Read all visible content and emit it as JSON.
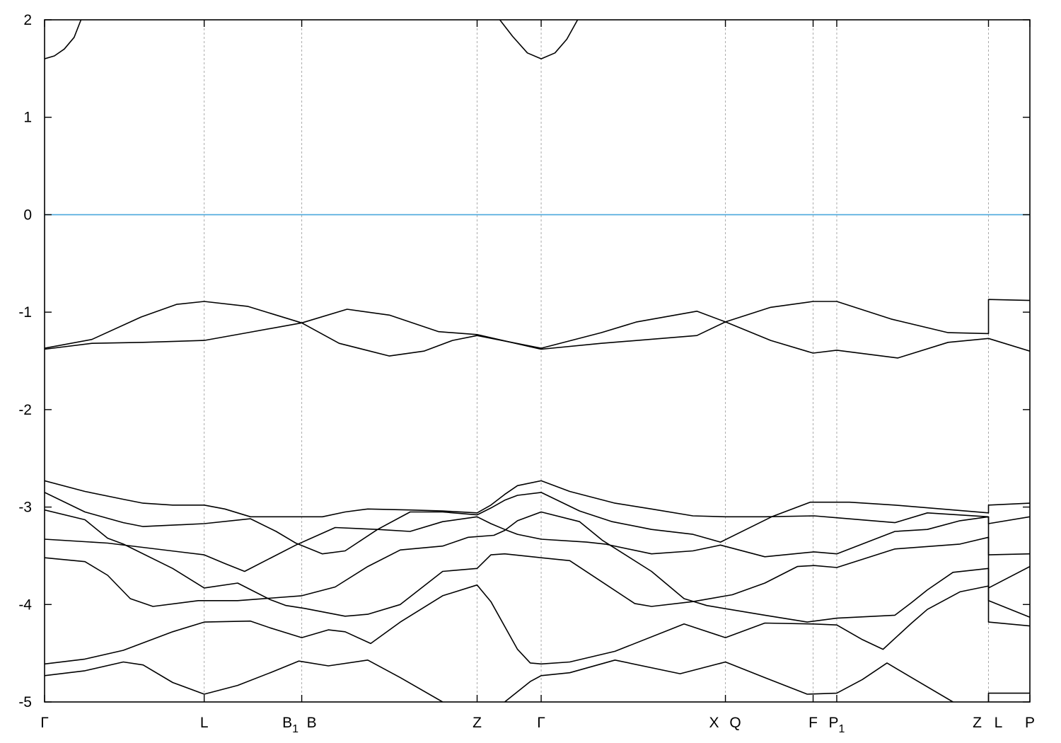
{
  "chart_data": {
    "type": "line",
    "title": "",
    "xlabel": "",
    "ylabel": "",
    "xlim": [
      0,
      10
    ],
    "ylim": [
      -5,
      2
    ],
    "y_ticks": [
      2,
      1,
      0,
      -1,
      -2,
      -3,
      -4,
      -5
    ],
    "x_ticks": [
      {
        "u": 0,
        "labels": [
          {
            "text": "Γ"
          }
        ]
      },
      {
        "u": 1.62,
        "labels": [
          {
            "text": "L"
          }
        ]
      },
      {
        "u": 2.61,
        "labels": [
          {
            "text": "B",
            "sub": "1"
          },
          {
            "text": "B"
          }
        ]
      },
      {
        "u": 4.39,
        "labels": [
          {
            "text": "Z"
          }
        ]
      },
      {
        "u": 5.04,
        "labels": [
          {
            "text": "Γ"
          }
        ]
      },
      {
        "u": 6.91,
        "labels": [
          {
            "text": "X"
          },
          {
            "text": "Q"
          }
        ]
      },
      {
        "u": 7.8,
        "labels": [
          {
            "text": "F"
          }
        ]
      },
      {
        "u": 8.04,
        "labels": [
          {
            "text": "P",
            "sub": "1"
          }
        ]
      },
      {
        "u": 9.58,
        "labels": [
          {
            "text": "Z"
          },
          {
            "text": "L"
          }
        ]
      },
      {
        "u": 10,
        "labels": [
          {
            "text": "P"
          }
        ]
      }
    ],
    "grid": "vertical dashed lines at high-symmetry points",
    "fermi_level": 0,
    "colors": {
      "bands": "#000000",
      "fermi": "#4aa8dc",
      "grid": "#aaaaaa"
    },
    "series": [
      {
        "points": [
          [
            0,
            1.6
          ],
          [
            0.1,
            1.63
          ],
          [
            0.2,
            1.7
          ],
          [
            0.3,
            1.82
          ],
          [
            0.37,
            2.0
          ],
          [
            0.42,
            2.2
          ]
        ]
      },
      {
        "points": [
          [
            4.55,
            2.2
          ],
          [
            4.62,
            2.0
          ],
          [
            4.75,
            1.83
          ],
          [
            4.9,
            1.66
          ],
          [
            5.04,
            1.6
          ],
          [
            5.18,
            1.66
          ],
          [
            5.3,
            1.8
          ],
          [
            5.41,
            2.0
          ],
          [
            5.48,
            2.2
          ]
        ]
      },
      {
        "points": [
          [
            0,
            -1.37
          ],
          [
            0.48,
            -1.28
          ],
          [
            0.98,
            -1.05
          ],
          [
            1.34,
            -0.92
          ],
          [
            1.62,
            -0.89
          ],
          [
            2.06,
            -0.94
          ],
          [
            2.61,
            -1.11
          ],
          [
            2.99,
            -1.32
          ],
          [
            3.5,
            -1.45
          ],
          [
            3.85,
            -1.4
          ],
          [
            4.14,
            -1.29
          ],
          [
            4.39,
            -1.24
          ],
          [
            5.04,
            -1.37
          ],
          [
            5.65,
            -1.21
          ],
          [
            6.01,
            -1.1
          ],
          [
            6.62,
            -0.99
          ],
          [
            6.91,
            -1.1
          ],
          [
            7.37,
            -1.29
          ],
          [
            7.8,
            -1.42
          ],
          [
            8.04,
            -1.39
          ],
          [
            8.66,
            -1.47
          ],
          [
            9.17,
            -1.31
          ],
          [
            9.58,
            -1.27
          ],
          [
            10,
            -1.4
          ]
        ]
      },
      {
        "points": [
          [
            0,
            -1.38
          ],
          [
            0.48,
            -1.32
          ],
          [
            1.0,
            -1.31
          ],
          [
            1.62,
            -1.29
          ],
          [
            2.06,
            -1.21
          ],
          [
            2.61,
            -1.11
          ],
          [
            3.07,
            -0.97
          ],
          [
            3.5,
            -1.03
          ],
          [
            4.0,
            -1.2
          ],
          [
            4.39,
            -1.23
          ],
          [
            5.04,
            -1.38
          ],
          [
            5.65,
            -1.32
          ],
          [
            6.62,
            -1.24
          ],
          [
            6.91,
            -1.1
          ],
          [
            7.37,
            -0.95
          ],
          [
            7.8,
            -0.89
          ],
          [
            8.04,
            -0.89
          ],
          [
            8.59,
            -1.07
          ],
          [
            9.17,
            -1.21
          ],
          [
            9.58,
            -1.22
          ],
          [
            9.58,
            -0.87
          ],
          [
            10,
            -0.88
          ]
        ]
      },
      {
        "points": [
          [
            0,
            -2.73
          ],
          [
            0.41,
            -2.84
          ],
          [
            0.8,
            -2.92
          ],
          [
            1.0,
            -2.96
          ],
          [
            1.3,
            -2.98
          ],
          [
            1.62,
            -2.98
          ],
          [
            1.83,
            -3.02
          ],
          [
            2.09,
            -3.1
          ],
          [
            2.61,
            -3.1
          ],
          [
            2.82,
            -3.1
          ],
          [
            3.05,
            -3.05
          ],
          [
            3.28,
            -3.02
          ],
          [
            3.71,
            -3.03
          ],
          [
            4.04,
            -3.04
          ],
          [
            4.39,
            -3.06
          ],
          [
            4.53,
            -2.98
          ],
          [
            4.67,
            -2.87
          ],
          [
            4.8,
            -2.78
          ],
          [
            5.04,
            -2.73
          ],
          [
            5.33,
            -2.84
          ],
          [
            5.79,
            -2.96
          ],
          [
            6.16,
            -3.02
          ],
          [
            6.58,
            -3.09
          ],
          [
            6.91,
            -3.1
          ],
          [
            7.31,
            -3.1
          ],
          [
            7.81,
            -3.09
          ],
          [
            8.04,
            -3.11
          ],
          [
            8.63,
            -3.16
          ],
          [
            8.96,
            -3.06
          ],
          [
            9.58,
            -3.1
          ],
          [
            9.58,
            -3.17
          ],
          [
            10,
            -3.1
          ]
        ]
      },
      {
        "points": [
          [
            0,
            -2.85
          ],
          [
            0.41,
            -3.05
          ],
          [
            0.8,
            -3.16
          ],
          [
            1.0,
            -3.2
          ],
          [
            1.62,
            -3.17
          ],
          [
            2.09,
            -3.12
          ],
          [
            2.35,
            -3.25
          ],
          [
            2.55,
            -3.37
          ],
          [
            2.82,
            -3.48
          ],
          [
            3.05,
            -3.45
          ],
          [
            3.38,
            -3.23
          ],
          [
            3.71,
            -3.05
          ],
          [
            4.04,
            -3.05
          ],
          [
            4.39,
            -3.08
          ],
          [
            4.53,
            -3.01
          ],
          [
            4.67,
            -2.93
          ],
          [
            4.8,
            -2.88
          ],
          [
            5.04,
            -2.85
          ],
          [
            5.43,
            -3.04
          ],
          [
            5.76,
            -3.15
          ],
          [
            6.16,
            -3.23
          ],
          [
            6.58,
            -3.28
          ],
          [
            6.86,
            -3.36
          ],
          [
            7.38,
            -3.1
          ],
          [
            7.77,
            -2.95
          ],
          [
            8.17,
            -2.95
          ],
          [
            8.63,
            -2.98
          ],
          [
            9.58,
            -3.06
          ],
          [
            9.58,
            -2.98
          ],
          [
            10,
            -2.96
          ]
        ]
      },
      {
        "points": [
          [
            0,
            -3.03
          ],
          [
            0.41,
            -3.13
          ],
          [
            0.64,
            -3.32
          ],
          [
            0.8,
            -3.38
          ],
          [
            1.3,
            -3.63
          ],
          [
            1.62,
            -3.83
          ],
          [
            1.96,
            -3.78
          ],
          [
            2.29,
            -3.95
          ],
          [
            2.45,
            -4.01
          ],
          [
            2.64,
            -4.04
          ],
          [
            3.05,
            -4.12
          ],
          [
            3.28,
            -4.1
          ],
          [
            3.61,
            -4.0
          ],
          [
            4.04,
            -3.66
          ],
          [
            4.39,
            -3.63
          ],
          [
            4.53,
            -3.49
          ],
          [
            4.67,
            -3.48
          ],
          [
            5.04,
            -3.52
          ],
          [
            5.33,
            -3.55
          ],
          [
            5.66,
            -3.77
          ],
          [
            5.99,
            -3.99
          ],
          [
            6.16,
            -4.02
          ],
          [
            6.58,
            -3.97
          ],
          [
            6.98,
            -3.9
          ],
          [
            7.31,
            -3.78
          ],
          [
            7.64,
            -3.61
          ],
          [
            7.81,
            -3.6
          ],
          [
            8.04,
            -3.62
          ],
          [
            8.63,
            -3.43
          ],
          [
            9.29,
            -3.38
          ],
          [
            9.58,
            -3.31
          ],
          [
            9.58,
            -3.83
          ],
          [
            10,
            -3.61
          ]
        ]
      },
      {
        "points": [
          [
            0,
            -3.33
          ],
          [
            0.64,
            -3.37
          ],
          [
            1.62,
            -3.49
          ],
          [
            1.83,
            -3.58
          ],
          [
            2.03,
            -3.66
          ],
          [
            2.55,
            -3.39
          ],
          [
            2.95,
            -3.21
          ],
          [
            3.38,
            -3.23
          ],
          [
            3.71,
            -3.25
          ],
          [
            4.04,
            -3.15
          ],
          [
            4.39,
            -3.1
          ],
          [
            4.53,
            -3.17
          ],
          [
            4.67,
            -3.23
          ],
          [
            4.8,
            -3.28
          ],
          [
            5.04,
            -3.33
          ],
          [
            5.5,
            -3.36
          ],
          [
            5.69,
            -3.38
          ],
          [
            6.16,
            -3.48
          ],
          [
            6.58,
            -3.45
          ],
          [
            6.86,
            -3.39
          ],
          [
            7.31,
            -3.51
          ],
          [
            7.81,
            -3.46
          ],
          [
            8.04,
            -3.48
          ],
          [
            8.63,
            -3.25
          ],
          [
            8.96,
            -3.23
          ],
          [
            9.29,
            -3.14
          ],
          [
            9.58,
            -3.1
          ],
          [
            9.58,
            -3.49
          ],
          [
            10,
            -3.48
          ]
        ]
      },
      {
        "points": [
          [
            0,
            -3.52
          ],
          [
            0.41,
            -3.56
          ],
          [
            0.64,
            -3.7
          ],
          [
            0.87,
            -3.94
          ],
          [
            1.1,
            -4.02
          ],
          [
            1.56,
            -3.96
          ],
          [
            1.96,
            -3.96
          ],
          [
            2.61,
            -3.91
          ],
          [
            2.95,
            -3.82
          ],
          [
            3.28,
            -3.61
          ],
          [
            3.61,
            -3.44
          ],
          [
            4.04,
            -3.4
          ],
          [
            4.3,
            -3.31
          ],
          [
            4.56,
            -3.29
          ],
          [
            4.67,
            -3.24
          ],
          [
            4.8,
            -3.14
          ],
          [
            5.04,
            -3.05
          ],
          [
            5.43,
            -3.15
          ],
          [
            5.66,
            -3.34
          ],
          [
            6.16,
            -3.66
          ],
          [
            6.49,
            -3.94
          ],
          [
            6.72,
            -4.01
          ],
          [
            7.31,
            -4.11
          ],
          [
            7.74,
            -4.18
          ],
          [
            8.04,
            -4.14
          ],
          [
            8.63,
            -4.11
          ],
          [
            8.8,
            -3.98
          ],
          [
            8.96,
            -3.85
          ],
          [
            9.22,
            -3.67
          ],
          [
            9.58,
            -3.63
          ],
          [
            9.58,
            -3.96
          ],
          [
            10,
            -4.13
          ]
        ]
      },
      {
        "points": [
          [
            0,
            -4.61
          ],
          [
            0.41,
            -4.56
          ],
          [
            0.8,
            -4.47
          ],
          [
            1.3,
            -4.28
          ],
          [
            1.62,
            -4.18
          ],
          [
            2.09,
            -4.17
          ],
          [
            2.29,
            -4.24
          ],
          [
            2.61,
            -4.34
          ],
          [
            2.88,
            -4.26
          ],
          [
            3.05,
            -4.28
          ],
          [
            3.31,
            -4.4
          ],
          [
            3.61,
            -4.18
          ],
          [
            4.04,
            -3.91
          ],
          [
            4.39,
            -3.8
          ],
          [
            4.53,
            -3.97
          ],
          [
            4.8,
            -4.46
          ],
          [
            4.93,
            -4.6
          ],
          [
            5.04,
            -4.61
          ],
          [
            5.33,
            -4.59
          ],
          [
            5.79,
            -4.48
          ],
          [
            6.49,
            -4.2
          ],
          [
            6.91,
            -4.34
          ],
          [
            7.31,
            -4.19
          ],
          [
            7.81,
            -4.2
          ],
          [
            8.04,
            -4.21
          ],
          [
            8.3,
            -4.36
          ],
          [
            8.51,
            -4.46
          ],
          [
            8.8,
            -4.19
          ],
          [
            8.96,
            -4.05
          ],
          [
            9.29,
            -3.87
          ],
          [
            9.58,
            -3.81
          ],
          [
            9.58,
            -4.18
          ],
          [
            10,
            -4.22
          ]
        ]
      },
      {
        "points": [
          [
            0,
            -4.73
          ],
          [
            0.41,
            -4.68
          ],
          [
            0.8,
            -4.59
          ],
          [
            1.0,
            -4.62
          ],
          [
            1.3,
            -4.8
          ],
          [
            1.62,
            -4.92
          ],
          [
            1.96,
            -4.83
          ],
          [
            2.29,
            -4.7
          ],
          [
            2.58,
            -4.58
          ],
          [
            2.88,
            -4.63
          ],
          [
            3.28,
            -4.57
          ],
          [
            3.61,
            -4.75
          ],
          [
            4.04,
            -5.0
          ],
          [
            4.2,
            -5.1
          ]
        ]
      },
      {
        "points": [
          [
            4.55,
            -5.1
          ],
          [
            4.67,
            -5.0
          ],
          [
            4.93,
            -4.79
          ],
          [
            5.04,
            -4.73
          ],
          [
            5.33,
            -4.7
          ],
          [
            5.79,
            -4.57
          ],
          [
            6.45,
            -4.71
          ],
          [
            6.91,
            -4.59
          ],
          [
            7.31,
            -4.75
          ],
          [
            7.74,
            -4.92
          ],
          [
            8.04,
            -4.91
          ],
          [
            8.3,
            -4.77
          ],
          [
            8.55,
            -4.6
          ],
          [
            8.8,
            -4.75
          ],
          [
            9.22,
            -5.0
          ],
          [
            9.3,
            -5.1
          ]
        ]
      },
      {
        "points": [
          [
            9.58,
            -5.0
          ],
          [
            9.58,
            -4.91
          ],
          [
            10,
            -4.91
          ]
        ]
      }
    ]
  }
}
